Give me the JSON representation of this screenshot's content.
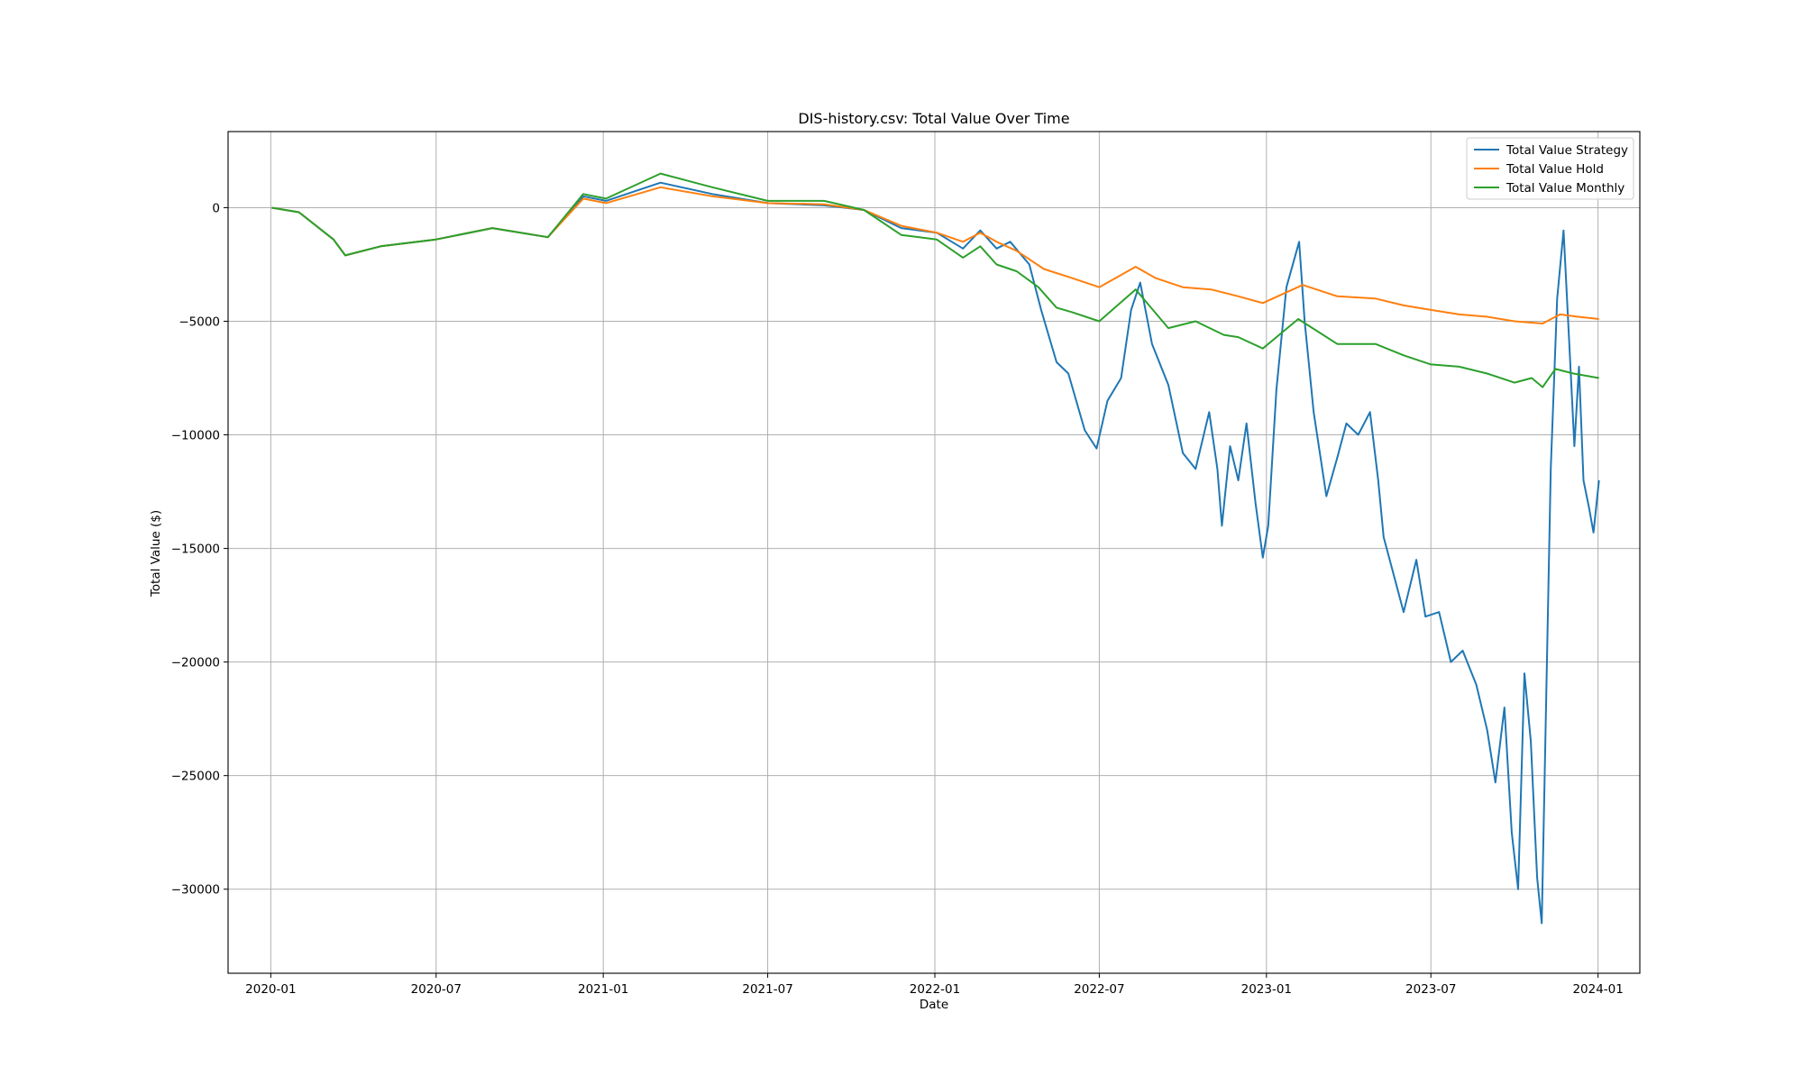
{
  "chart_data": {
    "type": "line",
    "title": "DIS-history.csv: Total Value Over Time",
    "xlabel": "Date",
    "ylabel": "Total Value ($)",
    "xlim": [
      "2019-11-15",
      "2024-02-16"
    ],
    "ylim": [
      -33700,
      3350
    ],
    "x_ticks": [
      "2020-01",
      "2020-07",
      "2021-01",
      "2021-07",
      "2022-01",
      "2022-07",
      "2023-01",
      "2023-07",
      "2024-01"
    ],
    "y_ticks": [
      0,
      -5000,
      -10000,
      -15000,
      -20000,
      -25000,
      -30000
    ],
    "grid": true,
    "legend_position": "top-right",
    "series": [
      {
        "name": "Total Value Strategy",
        "color": "#1f77b4",
        "x": [
          "2020-01-02",
          "2020-02-01",
          "2020-03-10",
          "2020-03-23",
          "2020-05-01",
          "2020-07-01",
          "2020-09-01",
          "2020-11-01",
          "2020-12-10",
          "2021-01-04",
          "2021-03-05",
          "2021-05-01",
          "2021-07-01",
          "2021-09-01",
          "2021-10-15",
          "2021-11-25",
          "2022-01-03",
          "2022-02-01",
          "2022-02-20",
          "2022-03-10",
          "2022-03-25",
          "2022-04-15",
          "2022-04-28",
          "2022-05-15",
          "2022-05-28",
          "2022-06-15",
          "2022-06-28",
          "2022-07-10",
          "2022-07-25",
          "2022-08-05",
          "2022-08-15",
          "2022-08-28",
          "2022-09-15",
          "2022-10-01",
          "2022-10-15",
          "2022-10-30",
          "2022-11-08",
          "2022-11-13",
          "2022-11-22",
          "2022-12-01",
          "2022-12-10",
          "2022-12-20",
          "2022-12-28",
          "2023-01-03",
          "2023-01-12",
          "2023-01-23",
          "2023-02-06",
          "2023-02-12",
          "2023-02-22",
          "2023-03-08",
          "2023-03-20",
          "2023-03-30",
          "2023-04-12",
          "2023-04-25",
          "2023-05-04",
          "2023-05-10",
          "2023-05-20",
          "2023-06-01",
          "2023-06-15",
          "2023-06-25",
          "2023-07-10",
          "2023-07-23",
          "2023-08-05",
          "2023-08-20",
          "2023-09-01",
          "2023-09-10",
          "2023-09-20",
          "2023-09-28",
          "2023-10-05",
          "2023-10-12",
          "2023-10-19",
          "2023-10-26",
          "2023-10-31",
          "2023-11-05",
          "2023-11-10",
          "2023-11-17",
          "2023-11-24",
          "2023-12-01",
          "2023-12-06",
          "2023-12-11",
          "2023-12-16",
          "2023-12-22",
          "2023-12-27",
          "2024-01-02"
        ],
        "values": [
          0,
          -200,
          -1400,
          -2100,
          -1700,
          -1400,
          -900,
          -1300,
          500,
          300,
          1100,
          600,
          200,
          100,
          -100,
          -900,
          -1100,
          -1800,
          -1000,
          -1800,
          -1500,
          -2500,
          -4500,
          -6800,
          -7300,
          -9800,
          -10600,
          -8500,
          -7500,
          -4500,
          -3300,
          -6000,
          -7800,
          -10800,
          -11500,
          -9000,
          -11500,
          -14000,
          -10500,
          -12000,
          -9500,
          -13000,
          -15400,
          -14000,
          -8000,
          -3500,
          -1500,
          -5000,
          -9000,
          -12700,
          -11000,
          -9500,
          -10000,
          -9000,
          -12000,
          -14500,
          -16000,
          -17800,
          -15500,
          -18000,
          -17800,
          -20000,
          -19500,
          -21000,
          -23000,
          -25300,
          -22000,
          -27500,
          -30000,
          -20500,
          -23500,
          -29500,
          -31500,
          -21500,
          -11500,
          -4000,
          -1000,
          -6500,
          -10500,
          -7000,
          -12000,
          -13200,
          -14300,
          -12000
        ]
      },
      {
        "name": "Total Value Hold",
        "color": "#ff7f0e",
        "x": [
          "2020-01-02",
          "2020-02-01",
          "2020-03-10",
          "2020-03-23",
          "2020-05-01",
          "2020-07-01",
          "2020-09-01",
          "2020-11-01",
          "2020-12-10",
          "2021-01-04",
          "2021-03-05",
          "2021-05-01",
          "2021-07-01",
          "2021-09-01",
          "2021-10-15",
          "2021-11-25",
          "2022-01-03",
          "2022-02-01",
          "2022-02-20",
          "2022-03-10",
          "2022-04-01",
          "2022-05-01",
          "2022-06-01",
          "2022-07-01",
          "2022-08-10",
          "2022-09-01",
          "2022-10-01",
          "2022-11-01",
          "2022-12-01",
          "2022-12-28",
          "2023-02-10",
          "2023-03-20",
          "2023-05-01",
          "2023-06-01",
          "2023-07-01",
          "2023-08-01",
          "2023-09-01",
          "2023-10-01",
          "2023-11-01",
          "2023-11-20",
          "2023-12-10",
          "2024-01-02"
        ],
        "values": [
          0,
          -200,
          -1400,
          -2100,
          -1700,
          -1400,
          -900,
          -1300,
          400,
          200,
          900,
          500,
          200,
          150,
          -100,
          -800,
          -1100,
          -1500,
          -1100,
          -1500,
          -1900,
          -2700,
          -3100,
          -3500,
          -2600,
          -3100,
          -3500,
          -3600,
          -3900,
          -4200,
          -3400,
          -3900,
          -4000,
          -4300,
          -4500,
          -4700,
          -4800,
          -5000,
          -5100,
          -4700,
          -4800,
          -4900
        ]
      },
      {
        "name": "Total Value Monthly",
        "color": "#2ca02c",
        "x": [
          "2020-01-02",
          "2020-02-01",
          "2020-03-10",
          "2020-03-23",
          "2020-05-01",
          "2020-07-01",
          "2020-09-01",
          "2020-11-01",
          "2020-12-10",
          "2021-01-04",
          "2021-03-05",
          "2021-05-01",
          "2021-07-01",
          "2021-09-01",
          "2021-10-15",
          "2021-11-25",
          "2022-01-03",
          "2022-02-01",
          "2022-02-20",
          "2022-03-10",
          "2022-04-01",
          "2022-04-25",
          "2022-05-15",
          "2022-06-01",
          "2022-07-01",
          "2022-08-10",
          "2022-09-15",
          "2022-10-15",
          "2022-11-15",
          "2022-12-01",
          "2022-12-28",
          "2023-02-05",
          "2023-03-20",
          "2023-05-01",
          "2023-06-01",
          "2023-07-01",
          "2023-08-01",
          "2023-09-01",
          "2023-10-01",
          "2023-10-20",
          "2023-11-01",
          "2023-11-15",
          "2023-12-05",
          "2024-01-02"
        ],
        "values": [
          0,
          -200,
          -1400,
          -2100,
          -1700,
          -1400,
          -900,
          -1300,
          600,
          400,
          1500,
          900,
          300,
          300,
          -100,
          -1200,
          -1400,
          -2200,
          -1700,
          -2500,
          -2800,
          -3500,
          -4400,
          -4600,
          -5000,
          -3600,
          -5300,
          -5000,
          -5600,
          -5700,
          -6200,
          -4900,
          -6000,
          -6000,
          -6500,
          -6900,
          -7000,
          -7300,
          -7700,
          -7500,
          -7900,
          -7100,
          -7300,
          -7500
        ]
      }
    ]
  }
}
